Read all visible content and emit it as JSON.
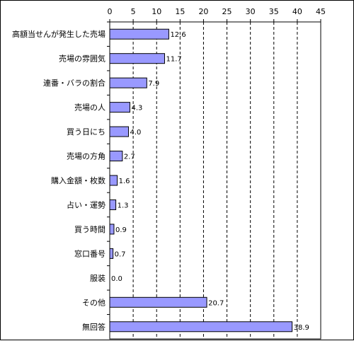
{
  "chart_data": {
    "type": "bar",
    "orientation": "horizontal",
    "categories": [
      "高額当せんが発生した売場",
      "売場の雰囲気",
      "連番・バラの割合",
      "売場の人",
      "買う日にち",
      "売場の方角",
      "購入金額・枚数",
      "占い・運勢",
      "買う時間",
      "窓口番号",
      "服装",
      "その他",
      "無回答"
    ],
    "values": [
      12.6,
      11.7,
      7.9,
      4.3,
      4.0,
      2.7,
      1.6,
      1.3,
      0.9,
      0.7,
      0.0,
      20.7,
      38.9
    ],
    "value_labels": [
      "12.6",
      "11.7",
      "7.9",
      "4.3",
      "4.0",
      "2.7",
      "1.6",
      "1.3",
      "0.9",
      "0.7",
      "0.0",
      "20.7",
      "38.9"
    ],
    "xlim": [
      0,
      45
    ],
    "x_ticks": [
      "0",
      "5",
      "10",
      "15",
      "20",
      "25",
      "30",
      "35",
      "40",
      "45"
    ],
    "x_axis_position": "top",
    "grid": "vertical dashed",
    "bar_color": "#9999ff",
    "bar_edge_color": "#000000",
    "title": "",
    "xlabel": "",
    "ylabel": ""
  }
}
